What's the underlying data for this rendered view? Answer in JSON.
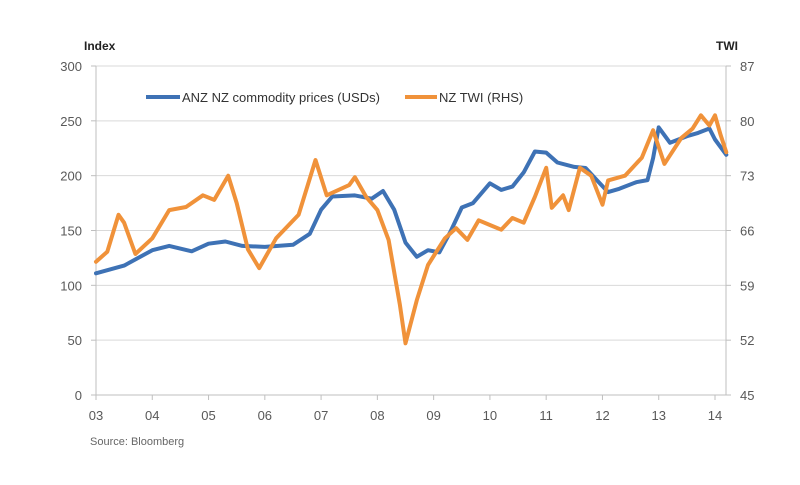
{
  "chart_data": {
    "type": "line",
    "title": "",
    "source": "Source: Bloomberg",
    "xlabel": "",
    "ylabel_left": "Index",
    "ylabel_right": "TWI",
    "x_ticks": [
      "03",
      "04",
      "05",
      "06",
      "07",
      "08",
      "09",
      "10",
      "11",
      "12",
      "13",
      "14"
    ],
    "x_tick_values": [
      2003,
      2004,
      2005,
      2006,
      2007,
      2008,
      2009,
      2010,
      2011,
      2012,
      2013,
      2014
    ],
    "xlim": [
      2003,
      2014.2
    ],
    "ylim_left": [
      0,
      300
    ],
    "y_ticks_left": [
      0,
      50,
      100,
      150,
      200,
      250,
      300
    ],
    "ylim_right": [
      45,
      87
    ],
    "y_ticks_right": [
      45,
      52,
      59,
      66,
      73,
      80,
      87
    ],
    "grid": true,
    "legend_position": "top-left",
    "series": [
      {
        "name": "ANZ NZ commodity prices (USDs)",
        "axis": "left",
        "color": "#3E72B5",
        "x": [
          2003.0,
          2003.5,
          2004.0,
          2004.3,
          2004.7,
          2005.0,
          2005.3,
          2005.6,
          2006.0,
          2006.5,
          2006.8,
          2007.0,
          2007.2,
          2007.6,
          2007.9,
          2008.1,
          2008.3,
          2008.5,
          2008.7,
          2008.9,
          2009.1,
          2009.3,
          2009.5,
          2009.7,
          2010.0,
          2010.2,
          2010.4,
          2010.6,
          2010.8,
          2011.0,
          2011.2,
          2011.5,
          2011.7,
          2011.9,
          2012.1,
          2012.3,
          2012.6,
          2012.8,
          2012.9,
          2013.0,
          2013.2,
          2013.5,
          2013.7,
          2013.9,
          2014.0,
          2014.2
        ],
        "values": [
          111,
          118,
          132,
          136,
          131,
          138,
          140,
          136,
          135,
          137,
          147,
          169,
          181,
          182,
          179,
          186,
          169,
          139,
          126,
          132,
          130,
          149,
          171,
          175,
          193,
          187,
          190,
          203,
          222,
          221,
          212,
          208,
          207,
          196,
          185,
          188,
          194,
          196,
          216,
          244,
          230,
          236,
          239,
          243,
          233,
          219
        ]
      },
      {
        "name": "NZ TWI (RHS)",
        "axis": "right",
        "color": "#F0923A",
        "x": [
          2003.0,
          2003.2,
          2003.4,
          2003.5,
          2003.7,
          2004.0,
          2004.3,
          2004.6,
          2004.9,
          2005.1,
          2005.35,
          2005.5,
          2005.7,
          2005.9,
          2006.2,
          2006.6,
          2006.9,
          2007.1,
          2007.5,
          2007.6,
          2007.8,
          2008.0,
          2008.2,
          2008.4,
          2008.5,
          2008.7,
          2008.9,
          2009.2,
          2009.4,
          2009.6,
          2009.8,
          2010.0,
          2010.2,
          2010.4,
          2010.6,
          2010.8,
          2011.0,
          2011.1,
          2011.3,
          2011.4,
          2011.6,
          2011.8,
          2012.0,
          2012.1,
          2012.4,
          2012.7,
          2012.9,
          2013.1,
          2013.2,
          2013.4,
          2013.6,
          2013.75,
          2013.9,
          2014.0,
          2014.1,
          2014.2
        ],
        "values": [
          62,
          63.3,
          68,
          67,
          63,
          65,
          68.6,
          69,
          70.5,
          69.9,
          73,
          69.5,
          63.6,
          61.2,
          65,
          68,
          75,
          70.5,
          71.8,
          72.8,
          70.3,
          68.6,
          64.8,
          56.5,
          51.6,
          57.1,
          61.6,
          65,
          66.3,
          64.8,
          67.3,
          66.7,
          66.1,
          67.6,
          67,
          70.3,
          74,
          68.9,
          70.5,
          68.6,
          74,
          73,
          69.3,
          72.4,
          73,
          75.3,
          78.8,
          74.5,
          75.6,
          77.8,
          79,
          80.7,
          79.4,
          80.7,
          78.2,
          76
        ]
      }
    ]
  }
}
